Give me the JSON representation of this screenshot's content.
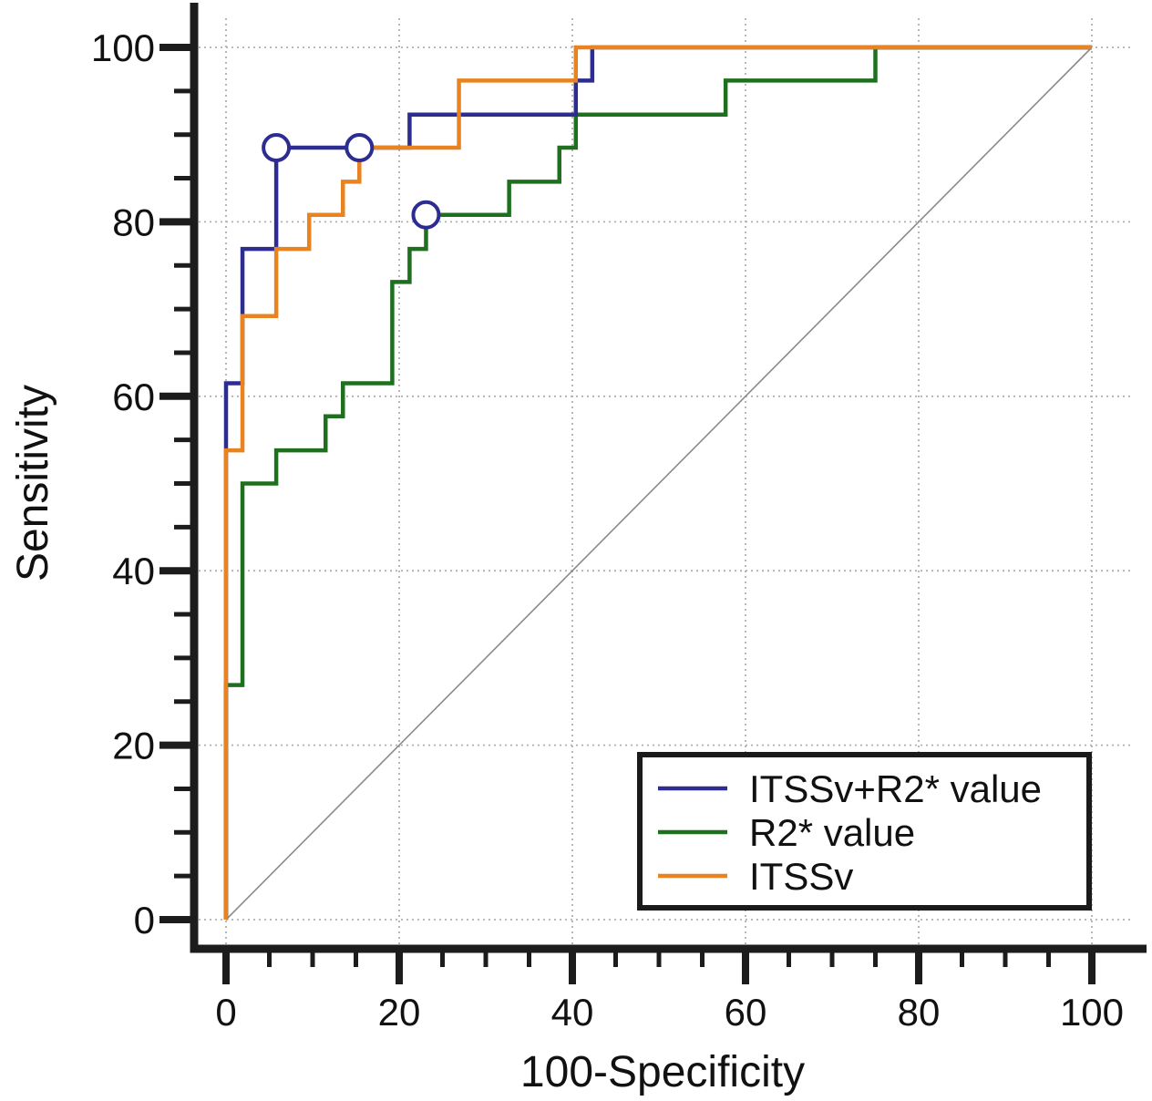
{
  "chart_data": {
    "type": "line",
    "subtype": "roc-step-curves",
    "xlabel": "100-Specificity",
    "ylabel": "Sensitivity",
    "xlim": [
      0,
      100
    ],
    "ylim": [
      0,
      100
    ],
    "x_major_ticks": [
      0,
      20,
      40,
      60,
      80,
      100
    ],
    "y_major_ticks": [
      0,
      20,
      40,
      60,
      80,
      100
    ],
    "minor_tick_step": 5,
    "grid": "dotted on both axes at major ticks",
    "axis_color": "#1c1c1c",
    "grid_color": "#b0b0b0",
    "diagonal_reference_line": {
      "from": [
        0,
        0
      ],
      "to": [
        100,
        100
      ],
      "color": "#8a8a8a"
    },
    "series": [
      {
        "name": "ITSSv+R2* value",
        "color": "#2c2c91",
        "points": [
          [
            0,
            0
          ],
          [
            0,
            61.5
          ],
          [
            1.9,
            61.5
          ],
          [
            1.9,
            76.9
          ],
          [
            5.8,
            76.9
          ],
          [
            5.8,
            88.5
          ],
          [
            21.2,
            88.5
          ],
          [
            21.2,
            92.3
          ],
          [
            40.4,
            92.3
          ],
          [
            40.4,
            96.2
          ],
          [
            42.3,
            96.2
          ],
          [
            42.3,
            100
          ],
          [
            100,
            100
          ]
        ],
        "operating_point": [
          5.8,
          88.5
        ]
      },
      {
        "name": "R2* value",
        "color": "#1e701e",
        "points": [
          [
            0,
            0
          ],
          [
            0,
            26.9
          ],
          [
            1.9,
            26.9
          ],
          [
            1.9,
            50
          ],
          [
            5.8,
            50
          ],
          [
            5.8,
            53.8
          ],
          [
            11.5,
            53.8
          ],
          [
            11.5,
            57.7
          ],
          [
            13.5,
            57.7
          ],
          [
            13.5,
            61.5
          ],
          [
            19.2,
            61.5
          ],
          [
            19.2,
            73.1
          ],
          [
            21.2,
            73.1
          ],
          [
            21.2,
            76.9
          ],
          [
            23.1,
            76.9
          ],
          [
            23.1,
            80.8
          ],
          [
            32.7,
            80.8
          ],
          [
            32.7,
            84.6
          ],
          [
            38.5,
            84.6
          ],
          [
            38.5,
            88.5
          ],
          [
            40.4,
            88.5
          ],
          [
            40.4,
            92.3
          ],
          [
            57.7,
            92.3
          ],
          [
            57.7,
            96.2
          ],
          [
            75,
            96.2
          ],
          [
            75,
            100
          ],
          [
            100,
            100
          ]
        ],
        "operating_point": [
          23.1,
          80.8
        ]
      },
      {
        "name": "ITSSv",
        "color": "#e8831f",
        "points": [
          [
            0,
            0
          ],
          [
            0,
            53.8
          ],
          [
            1.9,
            53.8
          ],
          [
            1.9,
            69.2
          ],
          [
            5.8,
            69.2
          ],
          [
            5.8,
            76.9
          ],
          [
            9.6,
            76.9
          ],
          [
            9.6,
            80.8
          ],
          [
            13.5,
            80.8
          ],
          [
            13.5,
            84.6
          ],
          [
            15.4,
            84.6
          ],
          [
            15.4,
            88.5
          ],
          [
            26.9,
            88.5
          ],
          [
            26.9,
            96.2
          ],
          [
            40.4,
            96.2
          ],
          [
            40.4,
            100
          ],
          [
            100,
            100
          ]
        ],
        "operating_point": [
          15.4,
          88.5
        ]
      }
    ],
    "draw_order": [
      "R2* value",
      "ITSSv+R2* value",
      "ITSSv"
    ],
    "operating_point_style": {
      "fill": "#ffffff",
      "stroke": "#2c2c91"
    },
    "legend": {
      "position": "bottom-right",
      "border_color": "#1a1a1a",
      "items": [
        "ITSSv+R2* value",
        "R2* value",
        "ITSSv"
      ]
    }
  }
}
